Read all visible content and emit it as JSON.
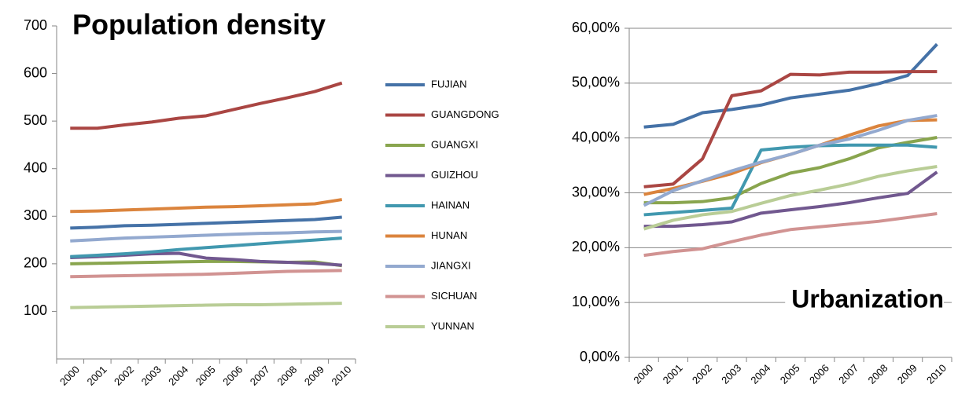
{
  "legend": [
    {
      "name": "FUJIAN",
      "color": "#4572a7"
    },
    {
      "name": "GUANGDONG",
      "color": "#aa4643"
    },
    {
      "name": "GUANGXI",
      "color": "#89a54e"
    },
    {
      "name": "GUIZHOU",
      "color": "#71588f"
    },
    {
      "name": "HAINAN",
      "color": "#4198af"
    },
    {
      "name": "HUNAN",
      "color": "#db843d"
    },
    {
      "name": "JIANGXI",
      "color": "#93a9cf"
    },
    {
      "name": "SICHUAN",
      "color": "#d19392"
    },
    {
      "name": "YUNNAN",
      "color": "#b9cd96"
    }
  ],
  "chart_data": [
    {
      "type": "line",
      "title": "Population density",
      "categories": [
        "2000",
        "2001",
        "2002",
        "2003",
        "2004",
        "2005",
        "2006",
        "2007",
        "2008",
        "2009",
        "2010"
      ],
      "ylim": [
        0,
        700
      ],
      "yticks": [
        100,
        200,
        300,
        400,
        500,
        600,
        700
      ],
      "grid": false,
      "series": [
        {
          "values": [
            275,
            277,
            280,
            281,
            283,
            285,
            287,
            289,
            291,
            293,
            298
          ]
        },
        {
          "values": [
            485,
            485,
            492,
            498,
            506,
            511,
            524,
            537,
            549,
            562,
            580
          ]
        },
        {
          "values": [
            200,
            201,
            202,
            203,
            204,
            205,
            205,
            204,
            203,
            204,
            196
          ]
        },
        {
          "values": [
            213,
            215,
            218,
            221,
            222,
            212,
            209,
            205,
            203,
            201,
            197
          ]
        },
        {
          "values": [
            215,
            218,
            221,
            225,
            230,
            234,
            238,
            242,
            246,
            250,
            254
          ]
        },
        {
          "values": [
            310,
            311,
            313,
            315,
            317,
            319,
            320,
            322,
            324,
            326,
            335
          ]
        },
        {
          "values": [
            248,
            251,
            254,
            256,
            258,
            260,
            262,
            264,
            265,
            267,
            268
          ]
        },
        {
          "values": [
            173,
            174,
            175,
            176,
            177,
            178,
            180,
            182,
            184,
            185,
            186
          ]
        },
        {
          "values": [
            108,
            109,
            110,
            111,
            112,
            113,
            114,
            114,
            115,
            116,
            117
          ]
        }
      ]
    },
    {
      "type": "line",
      "title": "Urbanization",
      "categories": [
        "2000",
        "2001",
        "2002",
        "2003",
        "2004",
        "2005",
        "2006",
        "2007",
        "2008",
        "2009",
        "2010"
      ],
      "ylim": [
        0,
        60
      ],
      "yticks": [
        {
          "value": 0,
          "label": "0,00%"
        },
        {
          "value": 10,
          "label": "10,00%"
        },
        {
          "value": 20,
          "label": "20,00%"
        },
        {
          "value": 30,
          "label": "30,00%"
        },
        {
          "value": 40,
          "label": "40,00%"
        },
        {
          "value": 50,
          "label": "50,00%"
        },
        {
          "value": 60,
          "label": "60,00%"
        }
      ],
      "grid": true,
      "series": [
        {
          "values": [
            42,
            42.5,
            44.6,
            45.2,
            46,
            47.3,
            48,
            48.7,
            49.9,
            51.4,
            57.1
          ]
        },
        {
          "values": [
            31.1,
            31.6,
            36.2,
            47.7,
            48.6,
            51.6,
            51.5,
            52,
            52,
            52.1,
            52.1
          ]
        },
        {
          "values": [
            28.2,
            28.2,
            28.4,
            29.1,
            31.7,
            33.6,
            34.6,
            36.2,
            38.2,
            39.2,
            40.1
          ]
        },
        {
          "values": [
            23.9,
            23.9,
            24.2,
            24.7,
            26.3,
            26.9,
            27.5,
            28.2,
            29.1,
            29.9,
            33.8
          ]
        },
        {
          "values": [
            26,
            26.4,
            26.8,
            27.2,
            37.8,
            38.3,
            38.6,
            38.7,
            38.7,
            38.7,
            38.3
          ]
        },
        {
          "values": [
            29.7,
            30.8,
            32.1,
            33.5,
            35.5,
            37,
            38.7,
            40.5,
            42.2,
            43.2,
            43.3
          ]
        },
        {
          "values": [
            27.7,
            30.4,
            32.2,
            34,
            35.6,
            37,
            38.7,
            39.8,
            41.4,
            43.2,
            44.1
          ]
        },
        {
          "values": [
            18.6,
            19.3,
            19.8,
            21.1,
            22.3,
            23.3,
            23.8,
            24.3,
            24.8,
            25.5,
            26.2
          ]
        },
        {
          "values": [
            23.4,
            25,
            26,
            26.6,
            28.1,
            29.5,
            30.5,
            31.6,
            33,
            34,
            34.8
          ]
        }
      ]
    }
  ]
}
